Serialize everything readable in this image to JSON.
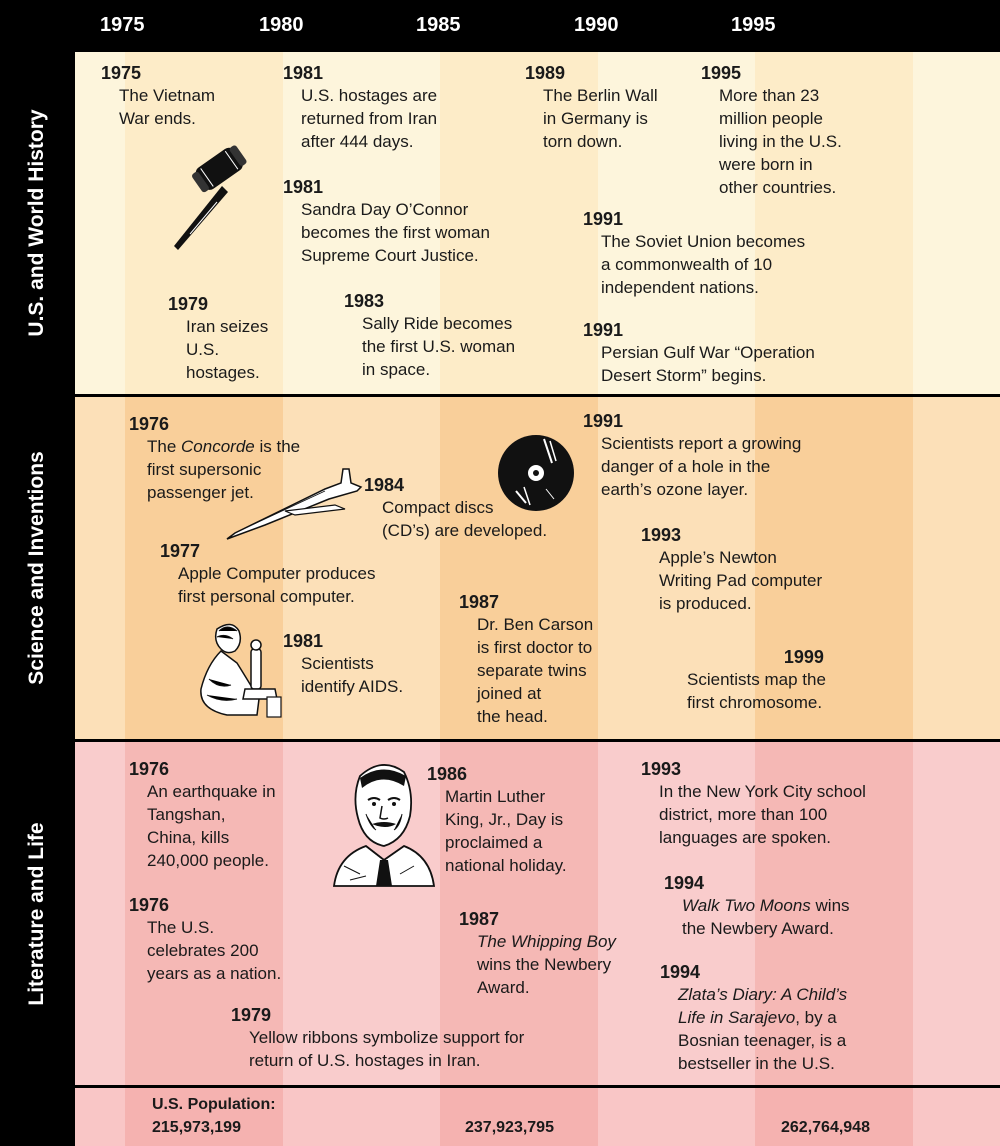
{
  "years": [
    "1975",
    "1980",
    "1985",
    "1990",
    "1995"
  ],
  "colors": {
    "history": {
      "a": "#fdf5dc",
      "b": "#fdecc8"
    },
    "science": {
      "a": "#fce0b8",
      "b": "#f9cf9a"
    },
    "literature": {
      "a": "#f9cccc",
      "b": "#f5b8b5"
    },
    "population": {
      "a": "#f9c6c6",
      "b": "#f5b2b0"
    }
  },
  "sections": {
    "history": {
      "title": "U.S. and World History",
      "events": [
        {
          "year": "1975",
          "text": "The Vietnam\nWar ends."
        },
        {
          "year": "1981",
          "text": "U.S. hostages are\nreturned from Iran\nafter 444 days."
        },
        {
          "year": "1989",
          "text": "The Berlin Wall\nin Germany is\ntorn down."
        },
        {
          "year": "1995",
          "text": "More than 23\nmillion people\nliving in the U.S.\nwere born in\nother countries."
        },
        {
          "year": "1981",
          "text": "Sandra Day O’Connor\nbecomes the first woman\nSupreme Court Justice."
        },
        {
          "year": "1991",
          "text": "The Soviet Union becomes\na commonwealth of 10\nindependent nations."
        },
        {
          "year": "1979",
          "text": "Iran seizes\nU.S.\nhostages."
        },
        {
          "year": "1983",
          "text": "Sally Ride becomes\nthe first U.S. woman\nin space."
        },
        {
          "year": "1991",
          "text": "Persian Gulf War “Operation\nDesert Storm” begins."
        }
      ]
    },
    "science": {
      "title": "Science and Inventions",
      "concorde": {
        "prefix": "The ",
        "italic": "Concorde",
        "suffix": " is the\nfirst supersonic\npassenger jet."
      },
      "events": [
        {
          "year": "1976"
        },
        {
          "year": "1984",
          "text": "Compact discs\n(CD’s) are developed."
        },
        {
          "year": "1991",
          "text": "Scientists report a growing\ndanger of a hole in the\nearth’s ozone layer."
        },
        {
          "year": "1977",
          "text": "Apple Computer produces\nfirst personal computer."
        },
        {
          "year": "1993",
          "text": "Apple’s Newton\nWriting Pad computer\nis produced."
        },
        {
          "year": "1987",
          "text": "Dr. Ben Carson\nis first doctor to\nseparate twins\njoined at\nthe head."
        },
        {
          "year": "1981",
          "text": "Scientists\nidentify AIDS."
        },
        {
          "year": "1999",
          "text": "Scientists map the\n first chromosome."
        }
      ]
    },
    "literature": {
      "title": "Literature and Life",
      "events": [
        {
          "year": "1976",
          "text": "An earthquake in\nTangshan,\nChina, kills\n240,000 people."
        },
        {
          "year": "1986",
          "text": "Martin Luther\nKing, Jr., Day is\nproclaimed a\nnational holiday."
        },
        {
          "year": "1993",
          "text": "In the New York City school\ndistrict, more than 100\nlanguages are spoken."
        },
        {
          "year": "1994"
        },
        {
          "year": "1976",
          "text": "The U.S.\ncelebrates 200\nyears as a nation."
        },
        {
          "year": "1987"
        },
        {
          "year": "1994"
        },
        {
          "year": "1979",
          "text": "Yellow ribbons symbolize support for\nreturn of U.S. hostages in Iran."
        }
      ],
      "moons": {
        "italic": "Walk Two Moons",
        "suffix": " wins\nthe Newbery Award."
      },
      "whipping": {
        "italic": "The Whipping Boy",
        "suffix": "\nwins the Newbery\nAward."
      },
      "zlata": {
        "italic": "Zlata’s Diary:  A Child’s\nLife in Sarajevo",
        "suffix": ", by a\nBosnian teenager, is a\nbestseller in the U.S."
      }
    }
  },
  "population": {
    "label": "U.S. Population:",
    "values": [
      "215,973,199",
      "237,923,795",
      "262,764,948"
    ]
  },
  "icons": [
    "gavel-icon",
    "concorde-jet-icon",
    "compact-disc-icon",
    "scientist-microscope-icon",
    "martin-luther-king-portrait-icon"
  ]
}
